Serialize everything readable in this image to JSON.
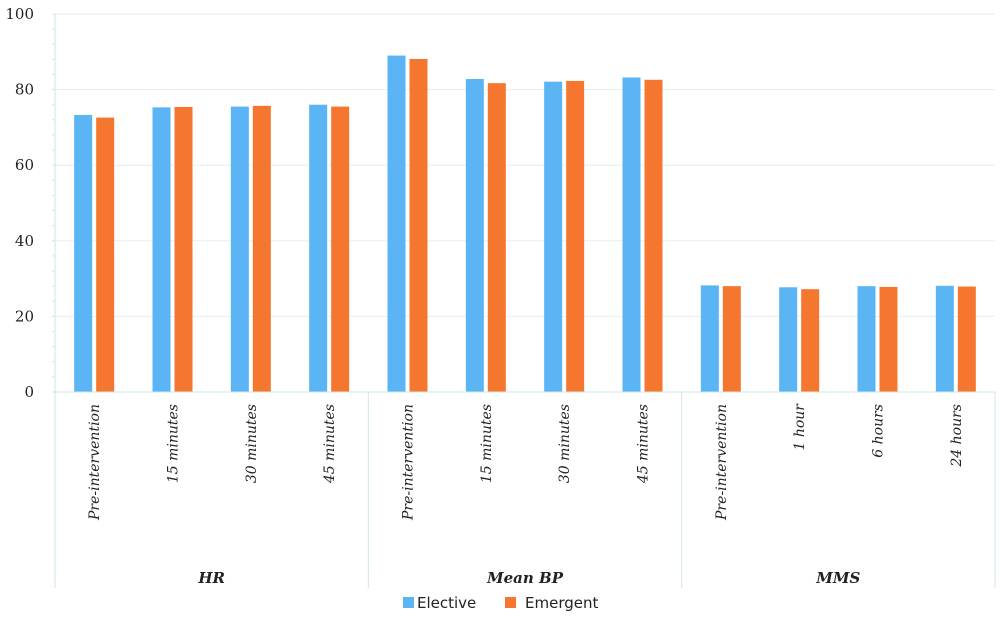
{
  "chart_data": {
    "type": "bar",
    "groups": [
      {
        "label": "HR",
        "categories": [
          "Pre-intervention",
          "15 minutes",
          "30 minutes",
          "45 minutes"
        ]
      },
      {
        "label": "Mean BP",
        "categories": [
          "Pre-intervention",
          "15 minutes",
          "30 minutes",
          "45 minutes"
        ]
      },
      {
        "label": "MMS",
        "categories": [
          "Pre-intervention",
          "1 hour",
          "6 hours",
          "24 hours"
        ]
      }
    ],
    "categories": [
      "Pre-intervention",
      "15 minutes",
      "30 minutes",
      "45 minutes",
      "Pre-intervention",
      "15 minutes",
      "30 minutes",
      "45 minutes",
      "Pre-intervention",
      "1 hour",
      "6 hours",
      "24 hours"
    ],
    "series": [
      {
        "name": "Elective",
        "color": "#5bb4f3",
        "values": [
          73.3,
          75.3,
          75.5,
          76.0,
          89.0,
          82.8,
          82.1,
          83.2,
          28.2,
          27.7,
          28.0,
          28.1
        ]
      },
      {
        "name": "Emergent",
        "color": "#f5772f",
        "values": [
          72.6,
          75.4,
          75.7,
          75.5,
          88.1,
          81.7,
          82.3,
          82.6,
          28.0,
          27.2,
          27.8,
          27.9
        ]
      }
    ],
    "ylim": [
      0,
      100
    ],
    "yticks": [
      0,
      20,
      40,
      60,
      80,
      100
    ],
    "grid": true,
    "legend_position": "bottom-center",
    "title": "",
    "xlabel": "",
    "ylabel": ""
  }
}
